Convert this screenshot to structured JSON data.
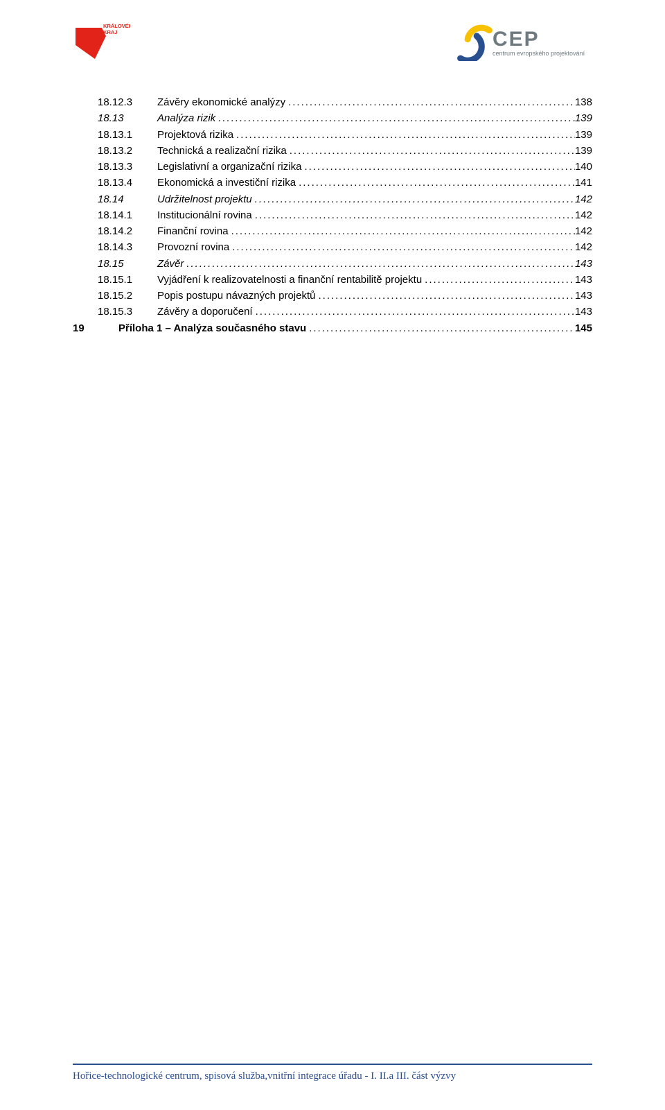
{
  "header": {
    "left_logo_text": "KRÁLOVÉHRADECKÝ\nKRAJ",
    "right_logo_main": "CEP",
    "right_logo_sub": "centrum evropského projektování"
  },
  "toc": [
    {
      "level": 3,
      "num": "18.12.3",
      "label": "Závěry ekonomické analýzy",
      "page": "138"
    },
    {
      "level": 2,
      "num": "18.13",
      "label": "Analýza rizik",
      "page": "139"
    },
    {
      "level": 3,
      "num": "18.13.1",
      "label": "Projektová rizika",
      "page": "139"
    },
    {
      "level": 3,
      "num": "18.13.2",
      "label": "Technická a realizační rizika",
      "page": "139"
    },
    {
      "level": 3,
      "num": "18.13.3",
      "label": "Legislativní a organizační rizika",
      "page": "140"
    },
    {
      "level": 3,
      "num": "18.13.4",
      "label": "Ekonomická a investiční rizika",
      "page": "141"
    },
    {
      "level": 2,
      "num": "18.14",
      "label": "Udržitelnost projektu",
      "page": "142"
    },
    {
      "level": 3,
      "num": "18.14.1",
      "label": "Institucionální rovina",
      "page": "142"
    },
    {
      "level": 3,
      "num": "18.14.2",
      "label": "Finanční rovina",
      "page": "142"
    },
    {
      "level": 3,
      "num": "18.14.3",
      "label": "Provozní rovina",
      "page": "142"
    },
    {
      "level": 2,
      "num": "18.15",
      "label": "Závěr",
      "page": "143"
    },
    {
      "level": 3,
      "num": "18.15.1",
      "label": "Vyjádření k realizovatelnosti a finanční rentabilitě projektu",
      "page": "143"
    },
    {
      "level": 3,
      "num": "18.15.2",
      "label": "Popis postupu návazných projektů",
      "page": "143"
    },
    {
      "level": 3,
      "num": "18.15.3",
      "label": "Závěry a doporučení",
      "page": "143"
    },
    {
      "level": 1,
      "num": "19",
      "label": "Příloha 1 – Analýza současného stavu",
      "page": "145"
    }
  ],
  "footer": {
    "text": "Hořice-technologické centrum, spisová služba,vnitřní integrace úřadu - I. II.a III. část výzvy"
  },
  "colors": {
    "footer_line": "#2a4f8f",
    "footer_text": "#2a4f8f",
    "khk_red": "#e2231a",
    "cep_blue": "#2a4f8f",
    "cep_yellow": "#f7c100",
    "cep_grey": "#6f7a80"
  }
}
